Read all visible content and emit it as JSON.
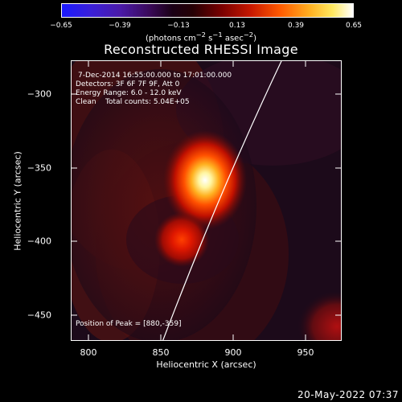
{
  "colorbar": {
    "ticks": [
      "−0.65",
      "−0.39",
      "−0.13",
      "0.13",
      "0.39",
      "0.65"
    ],
    "unit_html": "(photons cm<sup>−2</sup> s<sup>−1</sup> asec<sup>−2</sup>)"
  },
  "title": "Reconstructed RHESSI Image",
  "annotations": {
    "time": "7-Dec-2014 16:55:00.000 to 17:01:00.000",
    "detectors": "Detectors: 3F 6F 7F 9F, Att 0",
    "energy": "Energy Range: 6.0 - 12.0 keV",
    "clean": "Clean    Total counts: 5.04E+05",
    "peak": "Position of Peak = [880,-359]"
  },
  "axes": {
    "xlabel": "Heliocentric X (arcsec)",
    "ylabel": "Heliocentric Y (arcsec)",
    "xticks": [
      "800",
      "850",
      "900",
      "950"
    ],
    "yticks": [
      "−300",
      "−350",
      "−400",
      "−450"
    ]
  },
  "footer_date": "20-May-2022 07:37"
}
